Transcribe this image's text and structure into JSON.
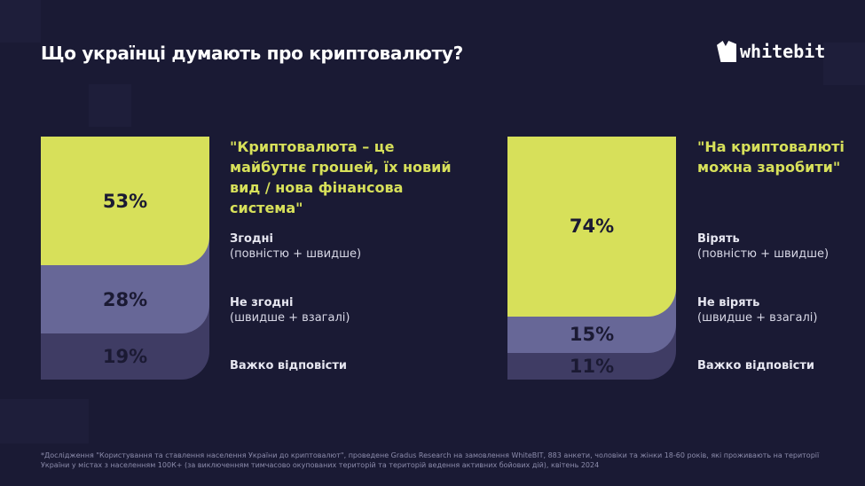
{
  "header": {
    "title": "Що українці думають про криптовалюту?",
    "logo_text": "whitebit"
  },
  "colors": {
    "background": "#1a1a34",
    "agree": "#d7e05a",
    "disagree": "#676797",
    "hard": "#3f3c64"
  },
  "chart_data": [
    {
      "type": "bar",
      "stacked": true,
      "title": "\"Криптовалюта – це майбутнє грошей, їх новий вид / нова фінансова система\"",
      "categories": [
        "Згодні (повністю + швидше)",
        "Не згодні (швидше + взагалі)",
        "Важко відповісти"
      ],
      "values": [
        53,
        28,
        19
      ],
      "labels": [
        "53%",
        "28%",
        "19%"
      ],
      "legend": [
        {
          "main": "Згодні",
          "sub": "(повністю + швидше)"
        },
        {
          "main": "Не згодні",
          "sub": "(швидше + взагалі)"
        },
        {
          "main": "Важко відповісти",
          "sub": ""
        }
      ]
    },
    {
      "type": "bar",
      "stacked": true,
      "title": "\"На криптовалюті можна заробити\"",
      "categories": [
        "Вірять (повністю + швидше)",
        "Не вірять (швидше + взагалі)",
        "Важко відповісти"
      ],
      "values": [
        74,
        15,
        11
      ],
      "labels": [
        "74%",
        "15%",
        "11%"
      ],
      "legend": [
        {
          "main": "Вірять",
          "sub": "(повністю + швидше)"
        },
        {
          "main": "Не вірять",
          "sub": "(швидше + взагалі)"
        },
        {
          "main": "Важко відповісти",
          "sub": ""
        }
      ]
    }
  ],
  "footnote": "*Дослідження \"Користування та ставлення населення України до криптовалют\", проведене Gradus Research на замовлення WhiteBIT, 883 анкети, чоловіки та жінки 18-60 років, які проживають на території України у містах з населенням 100К+ (за виключенням тимчасово окупованих територій та територій ведення активних бойових дій), квітень 2024"
}
